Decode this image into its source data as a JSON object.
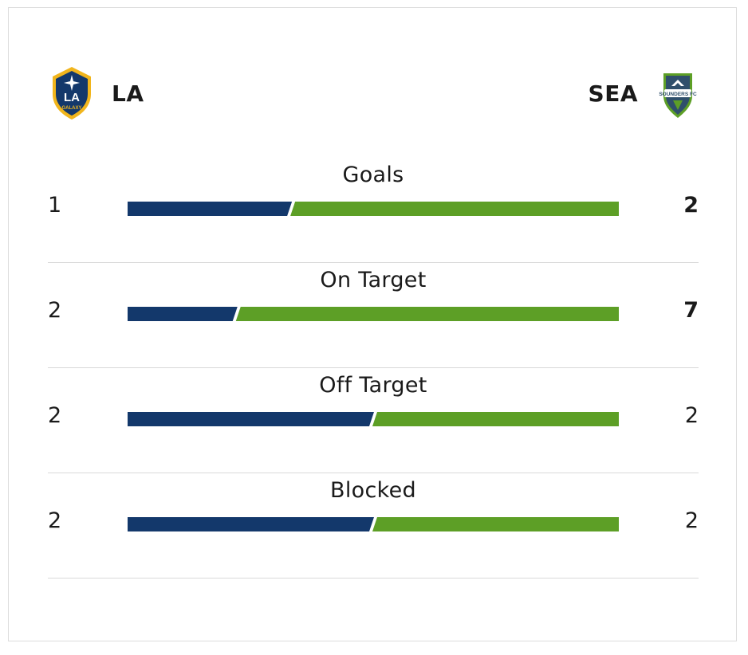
{
  "home": {
    "abbr": "LA",
    "logo_icon": "la-galaxy-crest-icon",
    "color": "#13386b"
  },
  "away": {
    "abbr": "SEA",
    "logo_icon": "seattle-sounders-crest-icon",
    "color": "#5d9f26"
  },
  "stats": [
    {
      "label": "Goals",
      "home": "1",
      "away": "2",
      "leader": "away",
      "home_share": 0.333
    },
    {
      "label": "On Target",
      "home": "2",
      "away": "7",
      "leader": "away",
      "home_share": 0.222
    },
    {
      "label": "Off Target",
      "home": "2",
      "away": "2",
      "leader": "none",
      "home_share": 0.5
    },
    {
      "label": "Blocked",
      "home": "2",
      "away": "2",
      "leader": "none",
      "home_share": 0.5
    }
  ]
}
